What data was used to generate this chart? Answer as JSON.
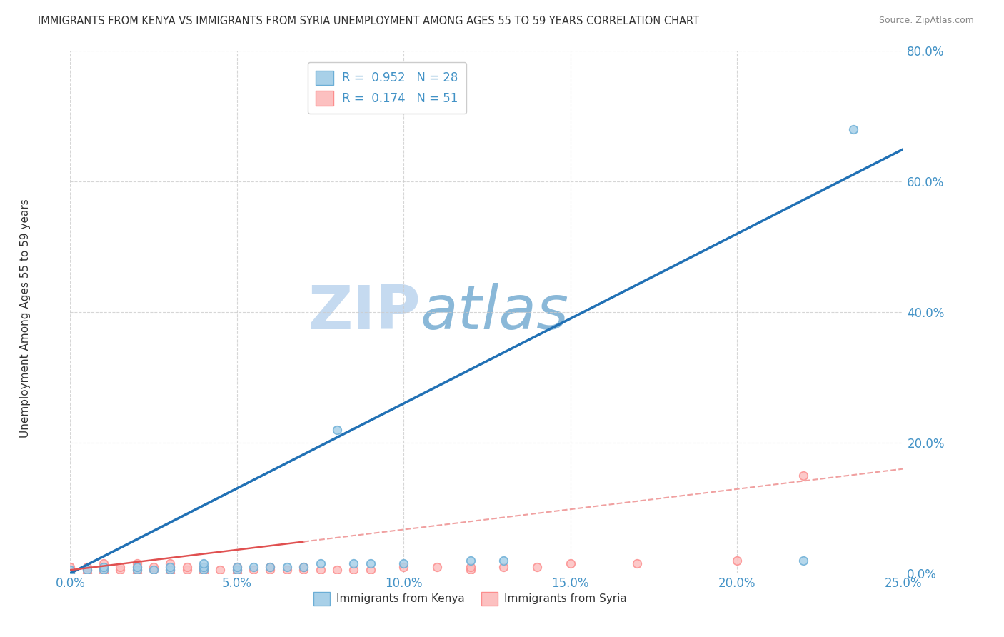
{
  "title": "IMMIGRANTS FROM KENYA VS IMMIGRANTS FROM SYRIA UNEMPLOYMENT AMONG AGES 55 TO 59 YEARS CORRELATION CHART",
  "source": "Source: ZipAtlas.com",
  "xlabel": "",
  "ylabel": "Unemployment Among Ages 55 to 59 years",
  "xlim": [
    0.0,
    0.25
  ],
  "ylim": [
    0.0,
    0.8
  ],
  "xticks": [
    0.0,
    0.05,
    0.1,
    0.15,
    0.2,
    0.25
  ],
  "yticks": [
    0.0,
    0.2,
    0.4,
    0.6,
    0.8
  ],
  "xtick_labels": [
    "0.0%",
    "5.0%",
    "10.0%",
    "15.0%",
    "20.0%",
    "25.0%"
  ],
  "ytick_labels": [
    "0.0%",
    "20.0%",
    "40.0%",
    "60.0%",
    "80.0%"
  ],
  "kenya_R": 0.952,
  "kenya_N": 28,
  "syria_R": 0.174,
  "syria_N": 51,
  "kenya_color": "#6baed6",
  "kenya_fill": "#a8d0e8",
  "syria_color": "#fc8d8d",
  "syria_fill": "#fcc0c0",
  "trend_kenya_color": "#2171b5",
  "trend_syria_color": "#e05050",
  "trend_syria_dashed_color": "#f0a0a0",
  "watermark_zip": "ZIP",
  "watermark_atlas": "atlas",
  "watermark_color_zip": "#c8ddf0",
  "watermark_color_atlas": "#a0c4e0",
  "background_color": "#ffffff",
  "grid_color": "#cccccc",
  "kenya_x": [
    0.0,
    0.0,
    0.005,
    0.01,
    0.01,
    0.02,
    0.02,
    0.025,
    0.03,
    0.03,
    0.04,
    0.04,
    0.04,
    0.05,
    0.05,
    0.055,
    0.06,
    0.065,
    0.07,
    0.075,
    0.08,
    0.085,
    0.09,
    0.1,
    0.12,
    0.13,
    0.22,
    0.235
  ],
  "kenya_y": [
    0.0,
    0.005,
    0.005,
    0.005,
    0.01,
    0.005,
    0.01,
    0.005,
    0.005,
    0.01,
    0.005,
    0.01,
    0.015,
    0.005,
    0.01,
    0.01,
    0.01,
    0.01,
    0.01,
    0.015,
    0.22,
    0.015,
    0.015,
    0.015,
    0.02,
    0.02,
    0.02,
    0.68
  ],
  "syria_x": [
    0.0,
    0.0,
    0.0,
    0.005,
    0.005,
    0.005,
    0.01,
    0.01,
    0.01,
    0.01,
    0.015,
    0.015,
    0.02,
    0.02,
    0.02,
    0.02,
    0.025,
    0.025,
    0.03,
    0.03,
    0.03,
    0.03,
    0.035,
    0.035,
    0.04,
    0.04,
    0.04,
    0.045,
    0.05,
    0.05,
    0.05,
    0.055,
    0.06,
    0.06,
    0.065,
    0.07,
    0.07,
    0.075,
    0.08,
    0.085,
    0.09,
    0.1,
    0.11,
    0.12,
    0.12,
    0.13,
    0.14,
    0.15,
    0.17,
    0.2,
    0.22
  ],
  "syria_y": [
    0.0,
    0.005,
    0.01,
    0.0,
    0.005,
    0.01,
    0.0,
    0.005,
    0.01,
    0.015,
    0.005,
    0.01,
    0.0,
    0.005,
    0.01,
    0.015,
    0.005,
    0.01,
    0.0,
    0.005,
    0.01,
    0.015,
    0.005,
    0.01,
    0.0,
    0.005,
    0.01,
    0.005,
    0.0,
    0.005,
    0.01,
    0.005,
    0.005,
    0.01,
    0.005,
    0.005,
    0.01,
    0.005,
    0.005,
    0.005,
    0.005,
    0.01,
    0.01,
    0.005,
    0.01,
    0.01,
    0.01,
    0.015,
    0.015,
    0.02,
    0.15
  ],
  "kenya_trend_x": [
    0.0,
    0.25
  ],
  "kenya_trend_y": [
    0.0,
    0.65
  ],
  "syria_trend_x": [
    0.0,
    0.25
  ],
  "syria_trend_y": [
    0.005,
    0.16
  ]
}
